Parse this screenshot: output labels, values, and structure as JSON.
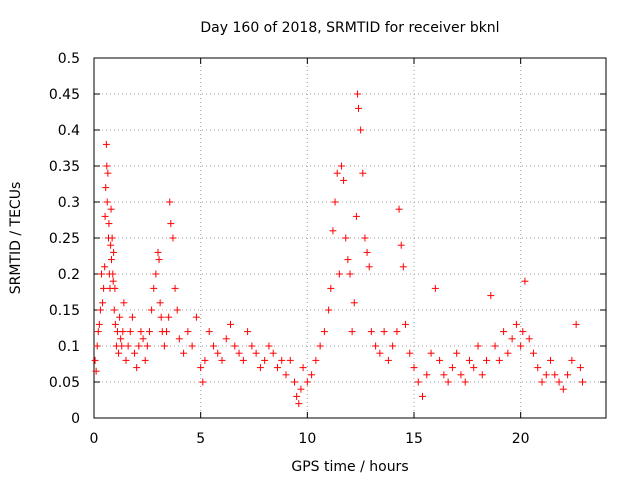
{
  "chart_data": {
    "type": "scatter",
    "title": "Day 160 of 2018, SRMTID for receiver bknl",
    "xlabel": "GPS time / hours",
    "ylabel": "SRMTID / TECUs",
    "xlim": [
      0,
      24
    ],
    "ylim": [
      0,
      0.5
    ],
    "xticks": [
      0,
      5,
      10,
      15,
      20
    ],
    "yticks": [
      0,
      0.05,
      0.1,
      0.15,
      0.2,
      0.25,
      0.3,
      0.35,
      0.4,
      0.45,
      0.5
    ],
    "grid": true,
    "marker": "+",
    "color": "#ff0000",
    "x": [
      0.05,
      0.1,
      0.15,
      0.2,
      0.25,
      0.3,
      0.35,
      0.4,
      0.45,
      0.5,
      0.52,
      0.55,
      0.58,
      0.6,
      0.62,
      0.65,
      0.68,
      0.7,
      0.72,
      0.75,
      0.78,
      0.8,
      0.82,
      0.85,
      0.88,
      0.9,
      0.92,
      0.95,
      0.98,
      1.0,
      1.05,
      1.1,
      1.15,
      1.2,
      1.25,
      1.3,
      1.35,
      1.4,
      1.5,
      1.6,
      1.7,
      1.8,
      1.9,
      2.0,
      2.1,
      2.2,
      2.3,
      2.4,
      2.5,
      2.6,
      2.7,
      2.8,
      2.9,
      3.0,
      3.05,
      3.1,
      3.15,
      3.2,
      3.3,
      3.4,
      3.5,
      3.55,
      3.6,
      3.7,
      3.8,
      3.9,
      4.0,
      4.2,
      4.4,
      4.6,
      4.8,
      5.0,
      5.1,
      5.2,
      5.4,
      5.6,
      5.8,
      6.0,
      6.2,
      6.4,
      6.6,
      6.8,
      7.0,
      7.2,
      7.4,
      7.6,
      7.8,
      8.0,
      8.2,
      8.4,
      8.6,
      8.8,
      9.0,
      9.2,
      9.4,
      9.5,
      9.6,
      9.7,
      9.8,
      10.0,
      10.2,
      10.4,
      10.6,
      10.8,
      11.0,
      11.1,
      11.2,
      11.3,
      11.4,
      11.5,
      11.6,
      11.7,
      11.8,
      11.9,
      12.0,
      12.1,
      12.2,
      12.3,
      12.35,
      12.4,
      12.5,
      12.6,
      12.7,
      12.8,
      12.9,
      13.0,
      13.2,
      13.4,
      13.6,
      13.8,
      14.0,
      14.2,
      14.3,
      14.4,
      14.5,
      14.6,
      14.8,
      15.0,
      15.2,
      15.4,
      15.6,
      15.8,
      16.0,
      16.2,
      16.4,
      16.6,
      16.8,
      17.0,
      17.2,
      17.4,
      17.6,
      17.8,
      18.0,
      18.2,
      18.4,
      18.6,
      18.8,
      19.0,
      19.2,
      19.4,
      19.6,
      19.8,
      20.0,
      20.1,
      20.2,
      20.4,
      20.6,
      20.8,
      21.0,
      21.2,
      21.4,
      21.6,
      21.8,
      22.0,
      22.2,
      22.4,
      22.6,
      22.8,
      22.9
    ],
    "y": [
      0.08,
      0.065,
      0.1,
      0.12,
      0.13,
      0.15,
      0.2,
      0.16,
      0.18,
      0.21,
      0.28,
      0.32,
      0.38,
      0.35,
      0.3,
      0.34,
      0.25,
      0.27,
      0.2,
      0.18,
      0.24,
      0.29,
      0.22,
      0.25,
      0.2,
      0.19,
      0.23,
      0.15,
      0.18,
      0.13,
      0.1,
      0.12,
      0.09,
      0.14,
      0.11,
      0.1,
      0.12,
      0.16,
      0.08,
      0.1,
      0.12,
      0.14,
      0.09,
      0.07,
      0.1,
      0.12,
      0.11,
      0.08,
      0.1,
      0.12,
      0.15,
      0.18,
      0.2,
      0.23,
      0.22,
      0.16,
      0.14,
      0.12,
      0.1,
      0.12,
      0.14,
      0.3,
      0.27,
      0.25,
      0.18,
      0.15,
      0.11,
      0.09,
      0.12,
      0.1,
      0.14,
      0.07,
      0.05,
      0.08,
      0.12,
      0.1,
      0.09,
      0.08,
      0.11,
      0.13,
      0.1,
      0.09,
      0.08,
      0.12,
      0.1,
      0.09,
      0.07,
      0.08,
      0.1,
      0.09,
      0.07,
      0.08,
      0.06,
      0.08,
      0.05,
      0.03,
      0.02,
      0.04,
      0.07,
      0.05,
      0.06,
      0.08,
      0.1,
      0.12,
      0.15,
      0.18,
      0.26,
      0.3,
      0.34,
      0.2,
      0.35,
      0.33,
      0.25,
      0.22,
      0.2,
      0.12,
      0.16,
      0.28,
      0.45,
      0.43,
      0.4,
      0.34,
      0.25,
      0.23,
      0.21,
      0.12,
      0.1,
      0.09,
      0.12,
      0.08,
      0.1,
      0.12,
      0.29,
      0.24,
      0.21,
      0.13,
      0.09,
      0.07,
      0.05,
      0.03,
      0.06,
      0.09,
      0.18,
      0.08,
      0.06,
      0.05,
      0.07,
      0.09,
      0.06,
      0.05,
      0.08,
      0.07,
      0.1,
      0.06,
      0.08,
      0.17,
      0.1,
      0.08,
      0.12,
      0.09,
      0.11,
      0.13,
      0.1,
      0.12,
      0.19,
      0.11,
      0.09,
      0.07,
      0.05,
      0.06,
      0.08,
      0.06,
      0.05,
      0.04,
      0.06,
      0.08,
      0.13,
      0.07,
      0.05
    ]
  }
}
